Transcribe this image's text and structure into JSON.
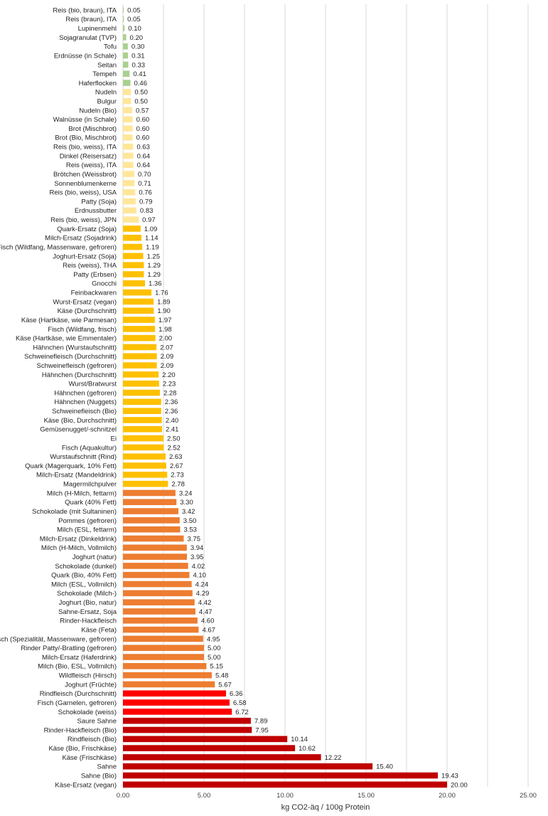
{
  "chart_data": {
    "type": "bar",
    "orientation": "horizontal",
    "xlabel": "kg CO2-äq / 100g Protein",
    "xlim": [
      0,
      25
    ],
    "xticks": [
      0,
      5,
      10,
      15,
      20,
      25
    ],
    "xtick_labels": [
      "0.00",
      "5.00",
      "10.00",
      "15.00",
      "20.00",
      "25.00"
    ],
    "grid": "vertical",
    "legend": "none",
    "colors": {
      "green": "#a9d18e",
      "pale_yellow": "#ffe699",
      "gold": "#ffc000",
      "orange": "#ed7d31",
      "red": "#ff0000",
      "dark_red": "#c00000"
    },
    "categories": [
      "Reis (bio, braun), ITA",
      "Reis (braun), ITA",
      "Lupinenmehl",
      "Sojagranulat (TVP)",
      "Tofu",
      "Erdnüsse (in Schale)",
      "Seitan",
      "Tempeh",
      "Haferflocken",
      "Nudeln",
      "Bulgur",
      "Nudeln (Bio)",
      "Walnüsse (in Schale)",
      "Brot (Mischbrot)",
      "Brot (Bio, Mischbrot)",
      "Reis (bio, weiss), ITA",
      "Dinkel (Reisersatz)",
      "Reis (weiss), ITA",
      "Brötchen (Weissbrot)",
      "Sonnenblumenkerne",
      "Reis (bio, weiss), USA",
      "Patty (Soja)",
      "Erdnussbutter",
      "Reis (bio, weiss), JPN",
      "Quark-Ersatz (Soja)",
      "Milch-Ersatz (Sojadrink)",
      "Fisch (Wildfang, Massenware, gefroren)",
      "Joghurt-Ersatz (Soja)",
      "Reis (weiss), THA",
      "Patty (Erbsen)",
      "Gnocchi",
      "Feinbackwaren",
      "Wurst-Ersatz (vegan)",
      "Käse (Durchschnitt)",
      "Käse (Hartkäse, wie Parmesan)",
      "Fisch (Wildfang, frisch)",
      "Käse (Hartkäse, wie Emmentaler)",
      "Hähnchen (Wurstaufschnitt)",
      "Schweinefleisch (Durchschnitt)",
      "Schweinefleisch (gefroren)",
      "Hähnchen (Durchschnitt)",
      "Wurst/Bratwurst",
      "Hähnchen (gefroren)",
      "Hähnchen (Nuggets)",
      "Schweinefleisch (Bio)",
      "Käse (Bio, Durchschnitt)",
      "Gemüsenugget/-schnitzel",
      "Ei",
      "Fisch (Aquakultur)",
      "Wurstaufschnitt (Rind)",
      "Quark (Magerquark, 10% Fett)",
      "Milch-Ersatz (Mandeldrink)",
      "Magermilchpulver",
      "Milch (H-Milch, fettarm)",
      "Quark (40% Fett)",
      "Schokolade (mit Sultaninen)",
      "Pommes (gefroren)",
      "Milch (ESL, fettarm)",
      "Milch-Ersatz (Dinkeldrink)",
      "Milch (H-Milch, Vollmilch)",
      "Joghurt (natur)",
      "Schokolade (dunkel)",
      "Quark (Bio, 40% Fett)",
      "Milch (ESL, Vollmilch)",
      "Schokolade (Milch-)",
      "Joghurt (Bio, natur)",
      "Sahne-Ersatz, Soja",
      "Rinder-Hackfleisch",
      "Käse (Feta)",
      "Fisch (Spezialität, Massenware, gefroren)",
      "Rinder Patty/-Bratling (gefroren)",
      "Milch-Ersatz (Haferdrink)",
      "Milch (Bio, ESL, Vollmilch)",
      "Wildfleisch (Hirsch)",
      "Joghurt (Früchte)",
      "Rindfleisch (Durchschnitt)",
      "Fisch (Garnelen, gefroren)",
      "Schokolade (weiss)",
      "Saure Sahne",
      "Rinder-Hackfleisch (Bio)",
      "Rindfleisch (Bio)",
      "Käse (Bio, Frischkäse)",
      "Käse (Frischkäse)",
      "Sahne",
      "Sahne (Bio)",
      "Käse-Ersatz (vegan)"
    ],
    "values": [
      0.05,
      0.05,
      0.1,
      0.2,
      0.3,
      0.31,
      0.33,
      0.41,
      0.46,
      0.5,
      0.5,
      0.57,
      0.6,
      0.6,
      0.6,
      0.63,
      0.64,
      0.64,
      0.7,
      0.71,
      0.76,
      0.79,
      0.83,
      0.97,
      1.09,
      1.14,
      1.19,
      1.25,
      1.29,
      1.29,
      1.36,
      1.76,
      1.89,
      1.9,
      1.97,
      1.98,
      2.0,
      2.07,
      2.09,
      2.09,
      2.2,
      2.23,
      2.28,
      2.36,
      2.36,
      2.4,
      2.41,
      2.5,
      2.52,
      2.63,
      2.67,
      2.73,
      2.78,
      3.24,
      3.3,
      3.42,
      3.5,
      3.53,
      3.75,
      3.94,
      3.95,
      4.02,
      4.1,
      4.24,
      4.29,
      4.42,
      4.47,
      4.6,
      4.67,
      4.95,
      5.0,
      5.0,
      5.15,
      5.48,
      5.67,
      6.36,
      6.58,
      6.72,
      7.89,
      7.95,
      10.14,
      10.62,
      12.22,
      15.4,
      19.43,
      20.0
    ],
    "value_labels": [
      "0.05",
      "0.05",
      "0.10",
      "0.20",
      "0.30",
      "0.31",
      "0.33",
      "0.41",
      "0.46",
      "0.50",
      "0.50",
      "0.57",
      "0.60",
      "0.60",
      "0.60",
      "0.63",
      "0.64",
      "0.64",
      "0.70",
      "0.71",
      "0.76",
      "0.79",
      "0.83",
      "0.97",
      "1.09",
      "1.14",
      "1.19",
      "1.25",
      "1.29",
      "1.29",
      "1.36",
      "1.76",
      "1.89",
      "1.90",
      "1.97",
      "1.98",
      "2.00",
      "2.07",
      "2.09",
      "2.09",
      "2.20",
      "2.23",
      "2.28",
      "2.36",
      "2.36",
      "2.40",
      "2.41",
      "2.50",
      "2.52",
      "2.63",
      "2.67",
      "2.73",
      "2.78",
      "3.24",
      "3.30",
      "3.42",
      "3.50",
      "3.53",
      "3.75",
      "3.94",
      "3.95",
      "4.02",
      "4.10",
      "4.24",
      "4.29",
      "4.42",
      "4.47",
      "4.60",
      "4.67",
      "4.95",
      "5.00",
      "5.00",
      "5.15",
      "5.48",
      "5.67",
      "6.36",
      "6.58",
      "6.72",
      "7.89",
      "7.95",
      "10.14",
      "10.62",
      "12.22",
      "15.40",
      "19.43",
      "20.00"
    ],
    "bar_colors": [
      "green",
      "green",
      "green",
      "green",
      "green",
      "green",
      "green",
      "green",
      "green",
      "pale_yellow",
      "pale_yellow",
      "pale_yellow",
      "pale_yellow",
      "pale_yellow",
      "pale_yellow",
      "pale_yellow",
      "pale_yellow",
      "pale_yellow",
      "pale_yellow",
      "pale_yellow",
      "pale_yellow",
      "pale_yellow",
      "pale_yellow",
      "pale_yellow",
      "gold",
      "gold",
      "gold",
      "gold",
      "gold",
      "gold",
      "gold",
      "gold",
      "gold",
      "gold",
      "gold",
      "gold",
      "gold",
      "gold",
      "gold",
      "gold",
      "gold",
      "gold",
      "gold",
      "gold",
      "gold",
      "gold",
      "gold",
      "gold",
      "gold",
      "gold",
      "gold",
      "gold",
      "gold",
      "orange",
      "orange",
      "orange",
      "orange",
      "orange",
      "orange",
      "orange",
      "orange",
      "orange",
      "orange",
      "orange",
      "orange",
      "orange",
      "orange",
      "orange",
      "orange",
      "orange",
      "orange",
      "orange",
      "orange",
      "orange",
      "orange",
      "red",
      "red",
      "red",
      "dark_red",
      "dark_red",
      "dark_red",
      "dark_red",
      "dark_red",
      "dark_red",
      "dark_red",
      "dark_red"
    ]
  }
}
